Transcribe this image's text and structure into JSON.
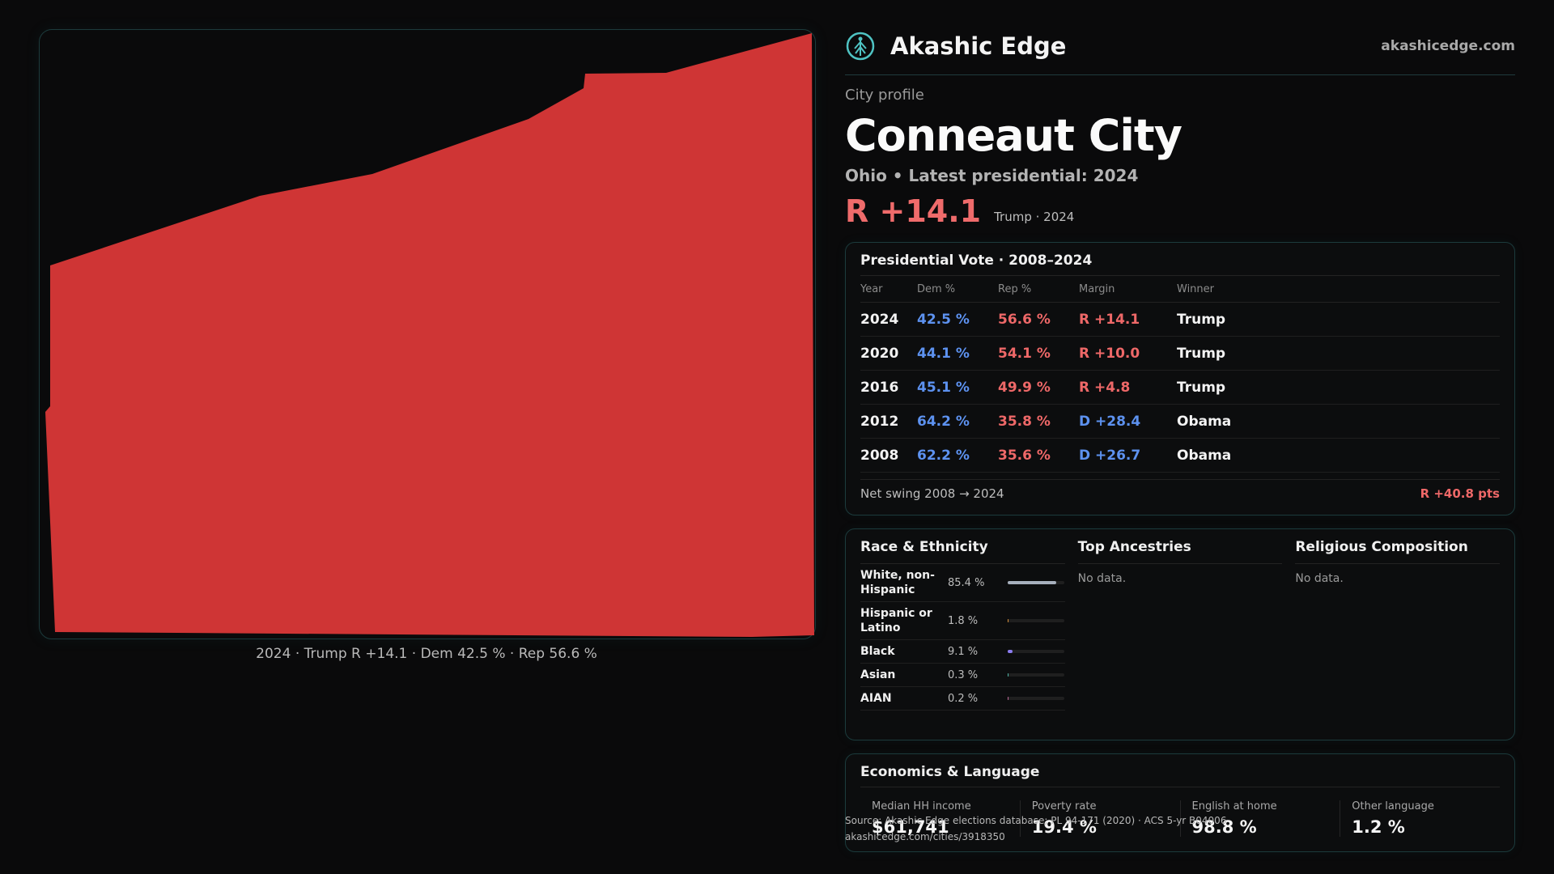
{
  "map": {
    "caption": "2024 · Trump R +14.1 · Dem 42.5 % · Rep 56.6 %",
    "fill_color": "#cf3535"
  },
  "brand": {
    "name": "Akashic Edge",
    "url": "akashicedge.com",
    "logo_icon": "tree-circle-icon"
  },
  "profile": {
    "kicker": "City profile",
    "city": "Conneaut City",
    "subline": "Ohio • Latest presidential: 2024",
    "margin": "R +14.1",
    "margin_note": "Trump · 2024"
  },
  "vote_table": {
    "title": "Presidential Vote · 2008–2024",
    "headers": [
      "Year",
      "Dem %",
      "Rep %",
      "Margin",
      "Winner"
    ],
    "rows": [
      {
        "year": "2024",
        "dem": "42.5 %",
        "rep": "56.6 %",
        "margin": "R +14.1",
        "winner": "Trump"
      },
      {
        "year": "2020",
        "dem": "44.1 %",
        "rep": "54.1 %",
        "margin": "R +10.0",
        "winner": "Trump"
      },
      {
        "year": "2016",
        "dem": "45.1 %",
        "rep": "49.9 %",
        "margin": "R +4.8",
        "winner": "Trump"
      },
      {
        "year": "2012",
        "dem": "64.2 %",
        "rep": "35.8 %",
        "margin": "D +28.4",
        "winner": "Obama"
      },
      {
        "year": "2008",
        "dem": "62.2 %",
        "rep": "35.6 %",
        "margin": "D +26.7",
        "winner": "Obama"
      }
    ],
    "swing_label": "Net swing 2008 → 2024",
    "swing_value": "R +40.8 pts"
  },
  "race": {
    "title": "Race & Ethnicity",
    "rows": [
      {
        "label": "White, non-Hispanic",
        "pct": "85.4 %",
        "fraction": 0.854,
        "color": "#a7b0bd"
      },
      {
        "label": "Hispanic or Latino",
        "pct": "1.8 %",
        "fraction": 0.018,
        "color": "#d9903c"
      },
      {
        "label": "Black",
        "pct": "9.1 %",
        "fraction": 0.091,
        "color": "#8b7cf0"
      },
      {
        "label": "Asian",
        "pct": "0.3 %",
        "fraction": 0.003,
        "color": "#4fb7a8"
      },
      {
        "label": "AIAN",
        "pct": "0.2 %",
        "fraction": 0.002,
        "color": "#c06a9a"
      }
    ]
  },
  "ancestries": {
    "title": "Top Ancestries",
    "empty": "No data."
  },
  "religion": {
    "title": "Religious Composition",
    "empty": "No data."
  },
  "economics": {
    "title": "Economics & Language",
    "cells": [
      {
        "label": "Median HH income",
        "value": "$61,741"
      },
      {
        "label": "Poverty rate",
        "value": "19.4 %"
      },
      {
        "label": "English at home",
        "value": "98.8 %"
      },
      {
        "label": "Other language",
        "value": "1.2 %"
      }
    ]
  },
  "source": {
    "line1": "Source: Akashic Edge elections database; PL 94-171 (2020) · ACS 5-yr B04006",
    "line2": "akashicedge.com/cities/3918350"
  }
}
